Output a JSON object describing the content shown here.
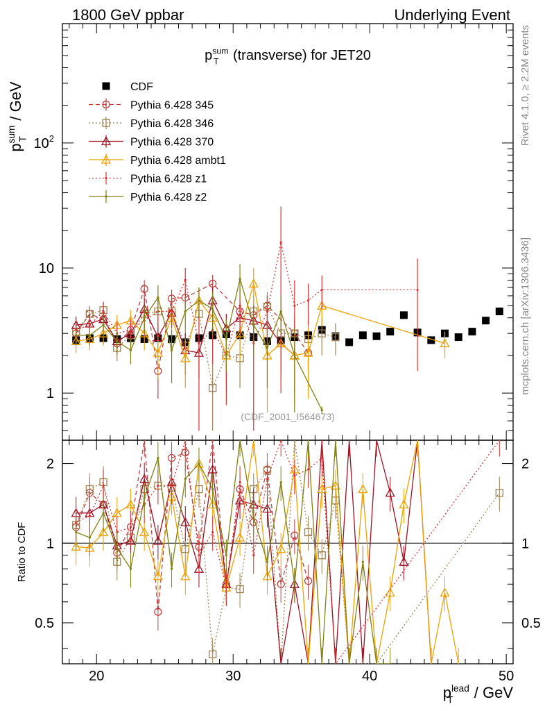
{
  "header": {
    "left": "1800 GeV ppbar",
    "right": "Underlying Event"
  },
  "side_labels": {
    "rivet": "Rivet 4.1.0, ≥ 2.2M events",
    "mcplots": "mcplots.cern.ch [arXiv:1306.3436]"
  },
  "chart_data": [
    {
      "panel": "main",
      "type": "scatter",
      "title": {
        "base": "p",
        "sup": "sum",
        "sub": "T",
        "rest": " (transverse) for JET20"
      },
      "ylabel": {
        "base": "p",
        "sup": "sum",
        "sub": "T",
        "rest": " / GeV"
      },
      "yscale": "log",
      "ylim": [
        0.42,
        900
      ],
      "xlim": [
        17.5,
        50.5
      ],
      "ytick_labels": [
        "1",
        "10"
      ],
      "ytick_sup": {
        "base": "10",
        "exp": "2"
      },
      "watermark": "(CDF_2001_I564673)",
      "legend_position": "top-left",
      "series": [
        {
          "name": "CDF",
          "color": "#000000",
          "marker": "square",
          "line": "none",
          "x": [
            18.5,
            19.5,
            20.5,
            21.5,
            22.5,
            23.5,
            24.5,
            25.5,
            26.5,
            27.5,
            28.5,
            29.5,
            30.5,
            31.5,
            32.5,
            33.5,
            34.5,
            35.5,
            36.5,
            37.5,
            38.5,
            39.5,
            40.5,
            41.5,
            42.5,
            43.5,
            44.5,
            45.5,
            46.5,
            47.5,
            48.5,
            49.5
          ],
          "y": [
            2.65,
            2.75,
            2.75,
            2.7,
            2.75,
            2.7,
            2.75,
            2.7,
            2.55,
            2.75,
            2.9,
            2.95,
            2.9,
            2.8,
            2.6,
            2.65,
            2.8,
            2.9,
            3.2,
            2.85,
            2.55,
            2.9,
            2.85,
            3.1,
            4.2,
            3.05,
            2.65,
            3.0,
            2.8,
            3.1,
            3.8,
            4.5
          ]
        },
        {
          "name": "Pythia 6.428 345",
          "color": "#c04040",
          "marker": "circle",
          "line": "dashed",
          "x": [
            18.5,
            19.5,
            20.5,
            21.5,
            22.5,
            23.5,
            24.5,
            25.5,
            26.5,
            28.5,
            30.5,
            31.5,
            32.5,
            34.5,
            35.5
          ],
          "y": [
            3.0,
            4.3,
            3.9,
            2.5,
            3.2,
            6.8,
            1.5,
            5.7,
            5.8,
            7.5,
            4.5,
            4.2,
            5.0,
            3.0,
            2.1
          ],
          "err": [
            0.5,
            0.6,
            0.6,
            0.5,
            0.7,
            1.2,
            0.6,
            1.0,
            1.0,
            1.3,
            0.9,
            0.8,
            1.0,
            0.8,
            0.6
          ]
        },
        {
          "name": "Pythia 6.428 346",
          "color": "#a08050",
          "marker": "square-open",
          "line": "dotted",
          "x": [
            18.5,
            19.5,
            20.5,
            21.5,
            22.5,
            23.5,
            24.5,
            25.5,
            26.5,
            27.5,
            28.5,
            29.5,
            30.5,
            31.5,
            32.5,
            33.5,
            34.5,
            35.5,
            36.5,
            37.5
          ],
          "y": [
            3.1,
            4.3,
            4.6,
            2.3,
            2.9,
            4.3,
            4.5,
            4.5,
            2.4,
            4.3,
            1.1,
            2.0,
            1.9,
            4.5,
            4.9,
            3.0,
            3.0,
            2.7,
            3.0,
            2.8
          ],
          "err": [
            0.6,
            0.7,
            0.8,
            0.5,
            0.6,
            0.9,
            1.0,
            1.0,
            0.8,
            1.0,
            0.6,
            0.8,
            0.8,
            1.5,
            1.5,
            1.2,
            1.2,
            1.0,
            1.0,
            0.8
          ]
        },
        {
          "name": "Pythia 6.428 370",
          "color": "#a01020",
          "marker": "triangle-open",
          "line": "solid",
          "x": [
            18.5,
            19.5,
            20.5,
            21.5,
            22.5,
            23.5,
            24.5,
            25.5,
            26.5,
            27.5,
            28.5,
            29.5,
            30.5,
            31.5,
            32.5,
            33.5,
            34.5
          ],
          "y": [
            3.5,
            3.6,
            3.9,
            2.6,
            3.0,
            4.7,
            2.8,
            4.4,
            2.2,
            2.1,
            5.5,
            3.3,
            4.0,
            3.8,
            3.5,
            2.5,
            2.0
          ],
          "err": [
            0.6,
            0.6,
            0.7,
            0.5,
            0.6,
            1.0,
            0.8,
            1.0,
            0.8,
            0.8,
            1.5,
            1.0,
            1.2,
            1.2,
            1.2,
            1.0,
            1.0
          ]
        },
        {
          "name": "Pythia 6.428 ambt1",
          "color": "#f0a000",
          "marker": "triangle-open",
          "line": "solid",
          "x": [
            18.5,
            19.5,
            20.5,
            21.5,
            22.5,
            23.5,
            24.5,
            25.5,
            26.5,
            27.5,
            28.5,
            29.5,
            30.5,
            31.5,
            32.5,
            33.5,
            34.5,
            35.5,
            36.5,
            45.5
          ],
          "y": [
            2.6,
            2.7,
            3.0,
            3.5,
            3.8,
            3.0,
            2.1,
            4.0,
            1.9,
            5.5,
            4.0,
            2.0,
            3.0,
            7.5,
            2.0,
            2.5,
            2.0,
            2.1,
            5.0,
            2.5
          ],
          "err": [
            0.5,
            0.5,
            0.6,
            0.7,
            0.8,
            0.8,
            0.8,
            1.2,
            0.8,
            1.5,
            1.5,
            1.0,
            1.2,
            2.5,
            1.3,
            1.2,
            1.2,
            1.2,
            1.5,
            0.6
          ]
        },
        {
          "name": "Pythia 6.428 z1",
          "color": "#e03030",
          "marker": "dot",
          "line": "dotted",
          "x": [
            18.5,
            19.5,
            20.5,
            21.5,
            22.5,
            23.5,
            24.5,
            25.5,
            26.5,
            27.5,
            28.5,
            29.5,
            30.5,
            31.5,
            32.5,
            33.5,
            34.5,
            35.5,
            36.5,
            43.5
          ],
          "y": [
            3.2,
            3.5,
            4.5,
            3.0,
            3.2,
            3.8,
            4.5,
            4.5,
            8.0,
            2.5,
            3.2,
            2.0,
            5.0,
            2.5,
            4.5,
            16.0,
            5.0,
            5.5,
            6.7,
            6.7
          ],
          "err": [
            0.6,
            0.6,
            0.8,
            0.7,
            0.7,
            0.9,
            1.2,
            1.2,
            2.0,
            2.0,
            1.5,
            1.2,
            2.0,
            2.0,
            1.5,
            15.0,
            3.0,
            2.0,
            2.0,
            5.2
          ]
        },
        {
          "name": "Pythia 6.428 z2",
          "color": "#808010",
          "marker": "dot",
          "line": "solid",
          "x": [
            18.5,
            19.5,
            20.5,
            21.5,
            22.5,
            23.5,
            24.5,
            25.5,
            26.5,
            27.5,
            28.5,
            29.5,
            30.5,
            31.5,
            32.5,
            33.5,
            34.5,
            36.5
          ],
          "y": [
            2.9,
            2.9,
            3.5,
            2.6,
            2.2,
            4.0,
            5.8,
            2.2,
            4.5,
            5.5,
            4.7,
            2.7,
            8.2,
            3.5,
            2.3,
            4.5,
            2.0,
            0.73
          ],
          "err": [
            0.5,
            0.5,
            0.7,
            0.5,
            0.5,
            1.0,
            1.5,
            1.0,
            1.3,
            1.5,
            1.8,
            1.2,
            2.5,
            1.5,
            1.2,
            1.5,
            1.3,
            0.05
          ]
        }
      ]
    },
    {
      "panel": "ratio",
      "type": "line",
      "ylabel": "Ratio to CDF",
      "yscale": "log",
      "ylim": [
        0.35,
        2.45
      ],
      "xlim": [
        17.5,
        50.5
      ],
      "xlabel": {
        "base": "p",
        "sup": "lead",
        "sub": "T",
        "rest": " / GeV"
      },
      "xtick_labels": [
        "20",
        "30",
        "40",
        "50"
      ],
      "ytick_labels": [
        "0.5",
        "1",
        "2"
      ],
      "reference": 1.0,
      "series": [
        {
          "name": "Pythia 6.428 345",
          "x": [
            18.5,
            19.5,
            20.5,
            21.5,
            22.5,
            23.5,
            24.5,
            25.5,
            26.5,
            27.5,
            28.5,
            29.5,
            30.5,
            31.5,
            32.5,
            33.5,
            34.5,
            35.5
          ],
          "y": [
            1.15,
            1.55,
            1.4,
            0.92,
            1.15,
            2.5,
            0.55,
            2.1,
            2.2,
            0.97,
            2.55,
            0.7,
            1.6,
            1.2,
            1.9,
            0.7,
            1.07,
            0.72
          ]
        },
        {
          "name": "Pythia 6.428 346",
          "x": [
            18.5,
            19.5,
            20.5,
            21.5,
            22.5,
            23.5,
            24.5,
            25.5,
            26.5,
            27.5,
            28.5,
            29.5,
            30.5,
            31.5,
            32.5,
            33.5,
            34.5,
            35.5,
            36.5,
            37.5,
            38.5,
            39.5,
            40.5,
            49.5
          ],
          "y": [
            1.17,
            1.6,
            1.7,
            0.85,
            1.05,
            1.6,
            1.65,
            1.62,
            0.95,
            1.6,
            0.38,
            0.68,
            0.67,
            1.6,
            1.88,
            0.35,
            2.5,
            1.1,
            0.9,
            1.45,
            0.35,
            0.35,
            0.35,
            1.55
          ]
        },
        {
          "name": "Pythia 6.428 370",
          "x": [
            18.5,
            19.5,
            20.5,
            21.5,
            22.5,
            23.5,
            24.5,
            25.5,
            26.5,
            27.5,
            28.5,
            29.5,
            30.5,
            31.5,
            32.5,
            33.5,
            34.5,
            35.5,
            36.5,
            37.5,
            38.5,
            39.5,
            40.5,
            41.5,
            42.5,
            43.5,
            44.5
          ],
          "y": [
            1.3,
            1.3,
            1.4,
            0.98,
            1.02,
            1.75,
            1.02,
            1.7,
            1.2,
            0.8,
            1.9,
            0.7,
            1.45,
            1.4,
            1.35,
            0.35,
            0.7,
            0.35,
            2.5,
            0.35,
            2.5,
            0.35,
            2.5,
            1.55,
            0.85,
            2.5,
            0.35
          ]
        },
        {
          "name": "Pythia 6.428 ambt1",
          "x": [
            18.5,
            19.5,
            20.5,
            21.5,
            22.5,
            23.5,
            24.5,
            25.5,
            26.5,
            27.5,
            28.5,
            29.5,
            30.5,
            31.5,
            32.5,
            33.5,
            34.5,
            35.5,
            36.5,
            37.5,
            38.5,
            39.5,
            40.5,
            41.5,
            42.5,
            43.5,
            44.5,
            45.5,
            46.5
          ],
          "y": [
            0.97,
            0.96,
            1.1,
            1.3,
            1.4,
            1.1,
            0.75,
            1.5,
            0.75,
            2.0,
            1.4,
            0.68,
            1.05,
            2.5,
            0.75,
            0.95,
            1.9,
            0.35,
            1.6,
            1.65,
            0.35,
            1.6,
            0.35,
            0.65,
            1.4,
            2.5,
            0.35,
            0.65,
            0.35
          ]
        },
        {
          "name": "Pythia 6.428 z1",
          "x": [
            18.5,
            19.5,
            20.5,
            21.5,
            22.5,
            23.5,
            24.5,
            25.5,
            26.5,
            27.5,
            28.5,
            29.5,
            30.5,
            31.5,
            32.5,
            33.5,
            34.5,
            35.5,
            36.5,
            37.5,
            49.5
          ],
          "y": [
            1.2,
            1.27,
            1.65,
            1.1,
            1.15,
            1.4,
            1.65,
            1.65,
            2.5,
            0.9,
            1.1,
            0.68,
            1.7,
            0.9,
            1.75,
            2.5,
            1.8,
            1.9,
            2.1,
            0.35,
            2.5
          ]
        },
        {
          "name": "Pythia 6.428 z2",
          "x": [
            18.5,
            19.5,
            20.5,
            21.5,
            22.5,
            23.5,
            24.5,
            25.5,
            26.5,
            27.5,
            28.5,
            29.5,
            30.5,
            31.5,
            32.5,
            33.5,
            34.5,
            35.5,
            36.5,
            37.5,
            38.5,
            39.5,
            40.5,
            41.5
          ],
          "y": [
            1.1,
            1.05,
            1.3,
            0.96,
            0.8,
            1.48,
            2.1,
            0.8,
            1.75,
            2.0,
            1.6,
            0.9,
            2.5,
            1.25,
            0.85,
            1.7,
            0.7,
            2.5,
            0.35,
            2.5,
            0.35,
            0.85,
            0.35,
            0.35
          ]
        }
      ]
    }
  ]
}
